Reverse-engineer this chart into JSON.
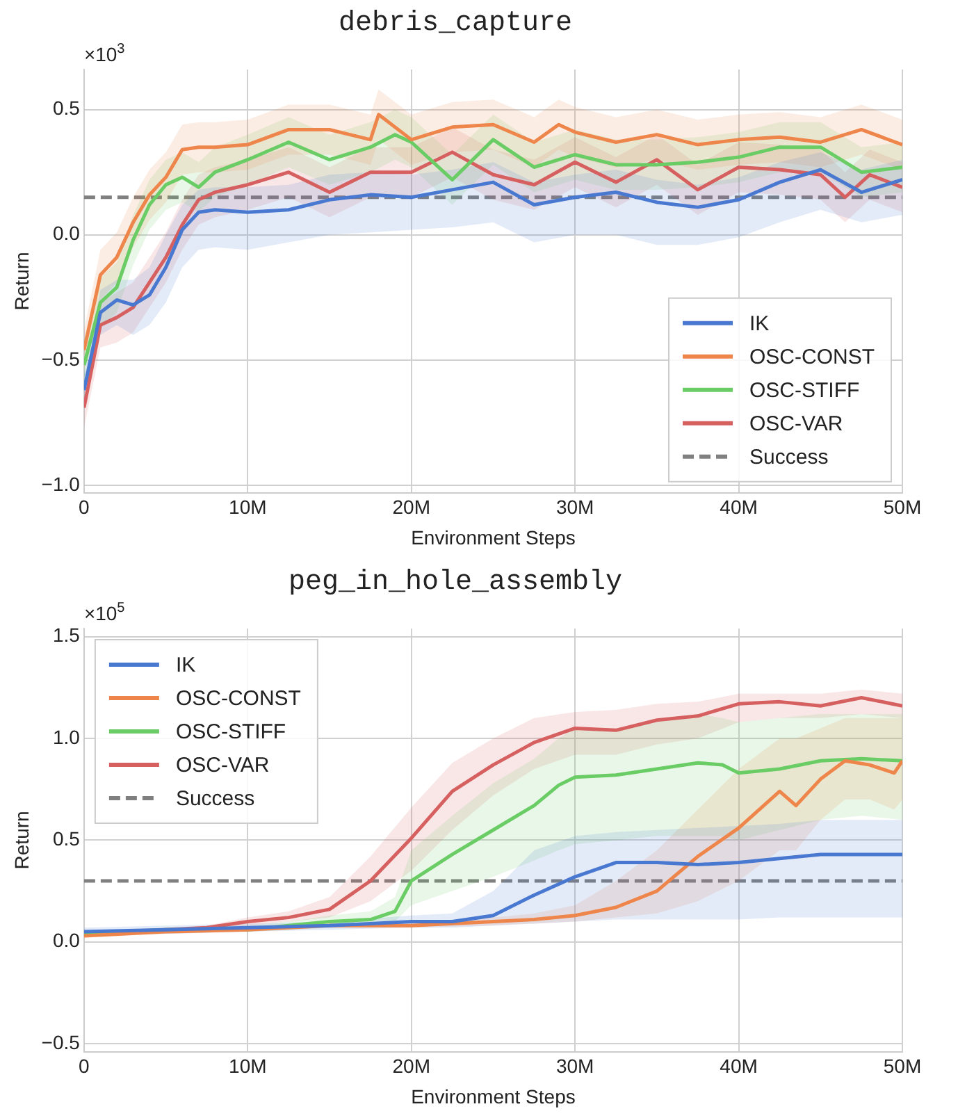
{
  "chart_data": [
    {
      "type": "line",
      "title": "debris_capture",
      "xlabel": "Environment Steps",
      "ylabel": "Return",
      "annotations": [
        "×10$^{3}$"
      ],
      "xlim": [
        0,
        50
      ],
      "xticks": [
        0,
        {
          "value": 10,
          "label": "10M"
        },
        {
          "value": 20,
          "label": "20M"
        },
        {
          "value": 30,
          "label": "30M"
        },
        {
          "value": 40,
          "label": "40M"
        },
        {
          "value": 50,
          "label": "50M"
        }
      ],
      "ylim": [
        -1.03,
        0.66
      ],
      "yticks": [
        {
          "value": -1,
          "label": "−1.0"
        },
        {
          "value": -0.5,
          "label": "−0.5"
        },
        {
          "value": 0,
          "label": "0.0"
        },
        {
          "value": 0.5,
          "label": "0.5"
        }
      ],
      "grid": true,
      "legend": "bottom right",
      "marker": "none",
      "line_style": "solid",
      "ref_lines": [
        {
          "axis": "y",
          "value": 0.15,
          "label": "Success",
          "color": "#808080",
          "line_style": "dashed"
        }
      ],
      "series": [
        {
          "name": "IK",
          "color": "#4878d0",
          "x": [
            0,
            1,
            2,
            3,
            4,
            5,
            6,
            7,
            8,
            10,
            12.5,
            15,
            17.5,
            20,
            22.5,
            25,
            27.5,
            30,
            32.5,
            35,
            37.5,
            40,
            42.5,
            45,
            47.5,
            50
          ],
          "values": [
            -0.62,
            -0.31,
            -0.26,
            -0.28,
            -0.24,
            -0.13,
            0.02,
            0.09,
            0.1,
            0.09,
            0.1,
            0.14,
            0.16,
            0.15,
            0.18,
            0.21,
            0.12,
            0.15,
            0.17,
            0.13,
            0.11,
            0.14,
            0.21,
            0.26,
            0.17,
            0.22
          ],
          "lower": [
            -0.7,
            -0.4,
            -0.36,
            -0.4,
            -0.36,
            -0.27,
            -0.13,
            -0.06,
            -0.05,
            -0.06,
            -0.03,
            0.0,
            0.01,
            0.02,
            0.03,
            0.05,
            -0.03,
            0.0,
            0.0,
            -0.04,
            -0.04,
            -0.01,
            0.05,
            0.1,
            0.05,
            0.08
          ],
          "upper": [
            -0.55,
            -0.22,
            -0.18,
            -0.18,
            -0.13,
            0.0,
            0.12,
            0.18,
            0.19,
            0.19,
            0.2,
            0.24,
            0.25,
            0.24,
            0.26,
            0.29,
            0.21,
            0.24,
            0.26,
            0.22,
            0.2,
            0.23,
            0.29,
            0.33,
            0.26,
            0.3
          ]
        },
        {
          "name": "OSC-CONST",
          "color": "#ee854a",
          "x": [
            0,
            1,
            2,
            3,
            4,
            5,
            6,
            7,
            8,
            10,
            12.5,
            15,
            17.5,
            18,
            20,
            22.5,
            25,
            27.5,
            29,
            30,
            32.5,
            35,
            37.5,
            40,
            42.5,
            45,
            47.5,
            50
          ],
          "values": [
            -0.46,
            -0.16,
            -0.09,
            0.05,
            0.16,
            0.23,
            0.34,
            0.35,
            0.35,
            0.36,
            0.42,
            0.42,
            0.38,
            0.48,
            0.38,
            0.43,
            0.44,
            0.37,
            0.44,
            0.41,
            0.37,
            0.4,
            0.36,
            0.38,
            0.39,
            0.37,
            0.42,
            0.36
          ],
          "lower": [
            -0.54,
            -0.26,
            -0.19,
            -0.05,
            0.06,
            0.13,
            0.24,
            0.25,
            0.25,
            0.26,
            0.32,
            0.32,
            0.28,
            0.38,
            0.28,
            0.33,
            0.34,
            0.27,
            0.34,
            0.31,
            0.27,
            0.3,
            0.26,
            0.28,
            0.29,
            0.27,
            0.32,
            0.26
          ],
          "upper": [
            -0.38,
            -0.06,
            0.01,
            0.15,
            0.26,
            0.33,
            0.44,
            0.45,
            0.45,
            0.46,
            0.52,
            0.52,
            0.48,
            0.58,
            0.48,
            0.53,
            0.54,
            0.47,
            0.54,
            0.51,
            0.47,
            0.5,
            0.46,
            0.48,
            0.49,
            0.47,
            0.52,
            0.46
          ]
        },
        {
          "name": "OSC-STIFF",
          "color": "#6acc64",
          "x": [
            0,
            1,
            2,
            3,
            4,
            5,
            6,
            7,
            8,
            10,
            12.5,
            15,
            17.5,
            19,
            20,
            22.5,
            25,
            27.5,
            30,
            32.5,
            35,
            37.5,
            40,
            42.5,
            45,
            47.5,
            50
          ],
          "values": [
            -0.52,
            -0.27,
            -0.21,
            -0.02,
            0.12,
            0.2,
            0.23,
            0.19,
            0.25,
            0.3,
            0.37,
            0.3,
            0.35,
            0.4,
            0.37,
            0.22,
            0.38,
            0.27,
            0.32,
            0.28,
            0.28,
            0.29,
            0.31,
            0.35,
            0.35,
            0.25,
            0.27
          ],
          "lower": [
            -0.62,
            -0.37,
            -0.31,
            -0.12,
            0.02,
            0.1,
            0.13,
            0.09,
            0.15,
            0.2,
            0.27,
            0.2,
            0.25,
            0.3,
            0.27,
            0.12,
            0.28,
            0.17,
            0.22,
            0.18,
            0.18,
            0.19,
            0.21,
            0.25,
            0.25,
            0.15,
            0.17
          ],
          "upper": [
            -0.42,
            -0.17,
            -0.11,
            0.08,
            0.22,
            0.3,
            0.33,
            0.29,
            0.35,
            0.4,
            0.47,
            0.4,
            0.45,
            0.5,
            0.47,
            0.32,
            0.48,
            0.37,
            0.42,
            0.38,
            0.38,
            0.39,
            0.41,
            0.45,
            0.45,
            0.35,
            0.37
          ]
        },
        {
          "name": "OSC-VAR",
          "color": "#d65f5f",
          "x": [
            0,
            1,
            2,
            3,
            4,
            5,
            6,
            7,
            8,
            10,
            12.5,
            15,
            17.5,
            20,
            22.5,
            25,
            27.5,
            30,
            32.5,
            35,
            37.5,
            40,
            42.5,
            45,
            46.5,
            48,
            50
          ],
          "values": [
            -0.69,
            -0.36,
            -0.33,
            -0.29,
            -0.19,
            -0.09,
            0.04,
            0.14,
            0.17,
            0.2,
            0.25,
            0.17,
            0.25,
            0.25,
            0.33,
            0.24,
            0.2,
            0.29,
            0.21,
            0.3,
            0.18,
            0.27,
            0.26,
            0.24,
            0.15,
            0.24,
            0.19
          ],
          "lower": [
            -0.77,
            -0.45,
            -0.43,
            -0.39,
            -0.29,
            -0.19,
            -0.06,
            0.04,
            0.07,
            0.1,
            0.15,
            0.07,
            0.15,
            0.15,
            0.23,
            0.14,
            0.1,
            0.19,
            0.11,
            0.2,
            0.08,
            0.17,
            0.16,
            0.14,
            0.05,
            0.14,
            0.09
          ],
          "upper": [
            -0.61,
            -0.27,
            -0.23,
            -0.19,
            -0.09,
            0.01,
            0.14,
            0.24,
            0.27,
            0.3,
            0.35,
            0.27,
            0.35,
            0.35,
            0.43,
            0.34,
            0.3,
            0.39,
            0.31,
            0.4,
            0.28,
            0.37,
            0.36,
            0.34,
            0.25,
            0.34,
            0.29
          ]
        }
      ]
    },
    {
      "type": "line",
      "title": "peg_in_hole_assembly",
      "xlabel": "Environment Steps",
      "ylabel": "Return",
      "annotations": [
        "×10$^{5}$"
      ],
      "xlim": [
        0,
        50
      ],
      "xticks": [
        0,
        {
          "value": 10,
          "label": "10M"
        },
        {
          "value": 20,
          "label": "20M"
        },
        {
          "value": 30,
          "label": "30M"
        },
        {
          "value": 40,
          "label": "40M"
        },
        {
          "value": 50,
          "label": "50M"
        }
      ],
      "ylim": [
        -0.54,
        1.54
      ],
      "yticks": [
        {
          "value": -0.5,
          "label": "−0.5"
        },
        {
          "value": 0,
          "label": "0.0"
        },
        {
          "value": 0.5,
          "label": "0.5"
        },
        {
          "value": 1,
          "label": "1.0"
        },
        {
          "value": 1.5,
          "label": "1.5"
        }
      ],
      "grid": true,
      "legend": "top left",
      "marker": "none",
      "line_style": "solid",
      "ref_lines": [
        {
          "axis": "y",
          "value": 0.3,
          "label": "Success",
          "color": "#808080",
          "line_style": "dashed"
        }
      ],
      "series": [
        {
          "name": "IK",
          "color": "#4878d0",
          "x": [
            0,
            5,
            10,
            15,
            20,
            22.5,
            25,
            27.5,
            30,
            32.5,
            35,
            37.5,
            40,
            42.5,
            45,
            47.5,
            50
          ],
          "values": [
            0.05,
            0.06,
            0.07,
            0.08,
            0.1,
            0.1,
            0.13,
            0.23,
            0.32,
            0.39,
            0.39,
            0.38,
            0.39,
            0.41,
            0.43,
            0.43,
            0.43
          ],
          "lower": [
            0.03,
            0.04,
            0.05,
            0.06,
            0.07,
            0.07,
            0.08,
            0.09,
            0.1,
            0.11,
            0.11,
            0.11,
            0.11,
            0.12,
            0.12,
            0.12,
            0.12
          ],
          "upper": [
            0.07,
            0.08,
            0.09,
            0.1,
            0.13,
            0.14,
            0.25,
            0.45,
            0.52,
            0.54,
            0.55,
            0.56,
            0.57,
            0.58,
            0.6,
            0.6,
            0.6
          ]
        },
        {
          "name": "OSC-CONST",
          "color": "#ee854a",
          "x": [
            0,
            5,
            10,
            15,
            20,
            25,
            27.5,
            30,
            32.5,
            35,
            37.5,
            40,
            42.5,
            43.5,
            45,
            46.5,
            48,
            49.5,
            50
          ],
          "values": [
            0.03,
            0.05,
            0.06,
            0.08,
            0.08,
            0.1,
            0.11,
            0.13,
            0.17,
            0.25,
            0.42,
            0.56,
            0.74,
            0.67,
            0.8,
            0.89,
            0.87,
            0.83,
            0.89
          ],
          "lower": [
            0.02,
            0.04,
            0.05,
            0.07,
            0.07,
            0.08,
            0.09,
            0.1,
            0.12,
            0.14,
            0.2,
            0.3,
            0.45,
            0.45,
            0.6,
            0.7,
            0.7,
            0.65,
            0.7
          ],
          "upper": [
            0.04,
            0.06,
            0.07,
            0.09,
            0.09,
            0.12,
            0.14,
            0.18,
            0.3,
            0.45,
            0.65,
            0.85,
            1.0,
            1.0,
            1.05,
            1.1,
            1.1,
            1.1,
            1.1
          ]
        },
        {
          "name": "OSC-STIFF",
          "color": "#6acc64",
          "x": [
            0,
            5,
            10,
            12.5,
            15,
            17.5,
            19,
            20,
            22.5,
            25,
            27.5,
            29,
            30,
            32.5,
            35,
            37.5,
            39,
            40,
            42.5,
            45,
            47.5,
            50
          ],
          "values": [
            0.04,
            0.06,
            0.06,
            0.08,
            0.1,
            0.11,
            0.15,
            0.3,
            0.43,
            0.55,
            0.67,
            0.77,
            0.81,
            0.82,
            0.85,
            0.88,
            0.87,
            0.83,
            0.85,
            0.89,
            0.9,
            0.89
          ],
          "lower": [
            0.03,
            0.05,
            0.05,
            0.06,
            0.07,
            0.08,
            0.1,
            0.18,
            0.25,
            0.32,
            0.4,
            0.45,
            0.48,
            0.5,
            0.52,
            0.52,
            0.52,
            0.5,
            0.55,
            0.6,
            0.62,
            0.6
          ],
          "upper": [
            0.05,
            0.07,
            0.08,
            0.1,
            0.13,
            0.15,
            0.22,
            0.45,
            0.62,
            0.78,
            0.9,
            1.0,
            1.05,
            1.05,
            1.08,
            1.12,
            1.1,
            1.08,
            1.1,
            1.12,
            1.12,
            1.12
          ]
        },
        {
          "name": "OSC-VAR",
          "color": "#d65f5f",
          "x": [
            0,
            5,
            7.5,
            10,
            12.5,
            15,
            17.5,
            20,
            22.5,
            25,
            27.5,
            30,
            32.5,
            35,
            37.5,
            40,
            42.5,
            45,
            47.5,
            50
          ],
          "values": [
            0.04,
            0.06,
            0.07,
            0.1,
            0.12,
            0.16,
            0.3,
            0.51,
            0.74,
            0.87,
            0.98,
            1.05,
            1.04,
            1.09,
            1.11,
            1.17,
            1.18,
            1.16,
            1.2,
            1.16
          ],
          "lower": [
            0.03,
            0.05,
            0.06,
            0.08,
            0.1,
            0.12,
            0.2,
            0.35,
            0.55,
            0.72,
            0.85,
            0.92,
            0.92,
            0.97,
            1.0,
            1.08,
            1.1,
            1.1,
            1.12,
            1.1
          ],
          "upper": [
            0.05,
            0.07,
            0.08,
            0.12,
            0.15,
            0.22,
            0.42,
            0.66,
            0.88,
            1.0,
            1.1,
            1.13,
            1.14,
            1.17,
            1.18,
            1.22,
            1.22,
            1.22,
            1.24,
            1.22
          ]
        }
      ]
    }
  ]
}
